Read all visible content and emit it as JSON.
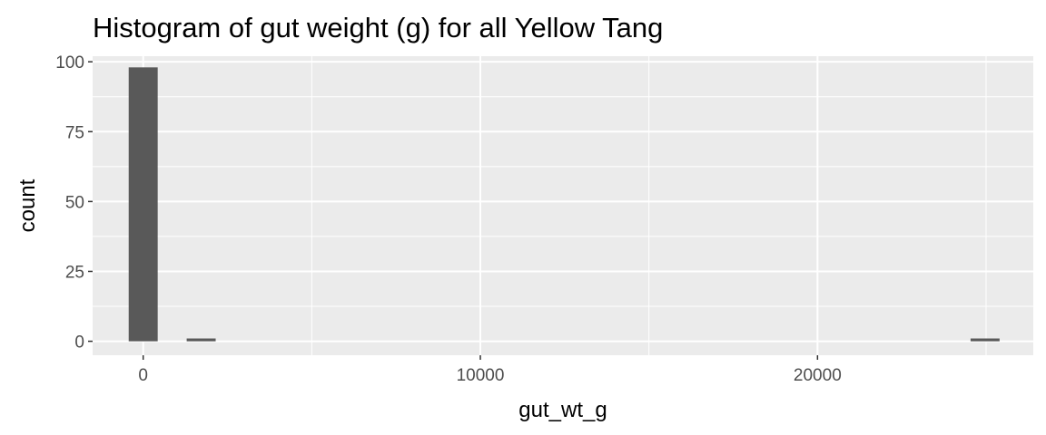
{
  "chart_data": {
    "type": "bar",
    "title": "Histogram of gut weight (g) for all Yellow Tang",
    "xlabel": "gut_wt_g",
    "ylabel": "count",
    "xlim": [
      -1500,
      26400
    ],
    "ylim": [
      -5,
      102
    ],
    "x_ticks": [
      0,
      10000,
      20000
    ],
    "x_tick_labels": [
      "0",
      "10000",
      "20000"
    ],
    "y_ticks": [
      0,
      25,
      50,
      75,
      100
    ],
    "y_tick_labels": [
      "0",
      "25",
      "50",
      "75",
      "100"
    ],
    "bins": [
      {
        "x0": -430,
        "x1": 430,
        "count": 98
      },
      {
        "x0": 1290,
        "x1": 2150,
        "count": 1
      },
      {
        "x0": 24540,
        "x1": 25400,
        "count": 1
      }
    ],
    "grid": true,
    "colors": {
      "panel": "#ebebeb",
      "grid": "#ffffff",
      "bar": "#595959",
      "tick": "#333333"
    }
  }
}
